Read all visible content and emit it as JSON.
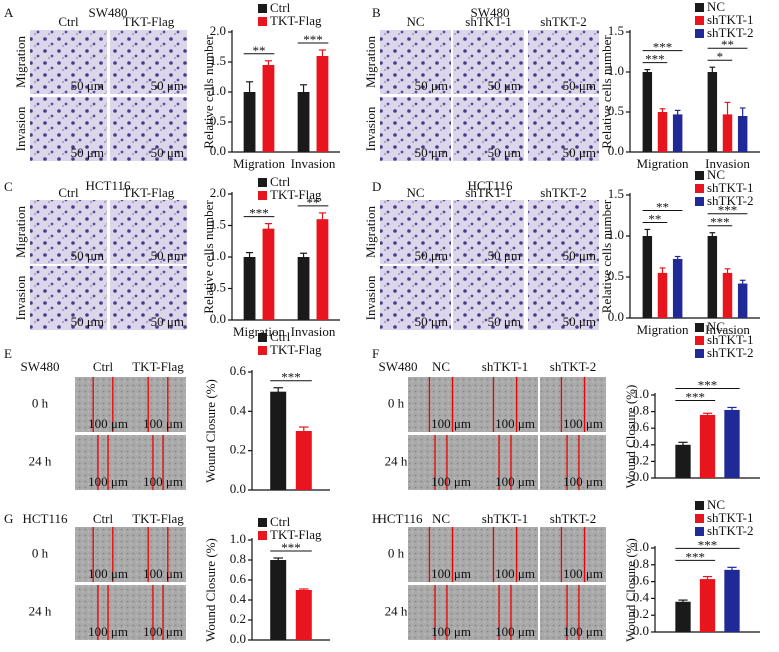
{
  "panels": [
    {
      "letter": "A",
      "cell_line": "SW480",
      "columns": [
        "Ctrl",
        "TKT-Flag"
      ],
      "rows": [
        "Migration",
        "Invasion"
      ],
      "scale": "50 μm"
    },
    {
      "letter": "B",
      "cell_line": "SW480",
      "columns": [
        "NC",
        "shTKT-1",
        "shTKT-2"
      ],
      "rows": [
        "Migration",
        "Invasion"
      ],
      "scale": "50 μm"
    },
    {
      "letter": "C",
      "cell_line": "HCT116",
      "columns": [
        "Ctrl",
        "TKT-Flag"
      ],
      "rows": [
        "Migration",
        "Invasion"
      ],
      "scale": "50 μm"
    },
    {
      "letter": "D",
      "cell_line": "HCT116",
      "columns": [
        "NC",
        "shTKT-1",
        "shTKT-2"
      ],
      "rows": [
        "Migration",
        "Invasion"
      ],
      "scale": "50 μm"
    },
    {
      "letter": "E",
      "cell_line": "SW480",
      "columns": [
        "Ctrl",
        "TKT-Flag"
      ],
      "rows": [
        "0 h",
        "24 h"
      ],
      "scale": "100 μm"
    },
    {
      "letter": "F",
      "cell_line": "SW480",
      "columns": [
        "NC",
        "shTKT-1",
        "shTKT-2"
      ],
      "rows": [
        "0 h",
        "24 h"
      ],
      "scale": "100 μm"
    },
    {
      "letter": "G",
      "cell_line": "HCT116",
      "columns": [
        "Ctrl",
        "TKT-Flag"
      ],
      "rows": [
        "0 h",
        "24 h"
      ],
      "scale": "100 μm"
    },
    {
      "letter": "H",
      "cell_line": "HCT116",
      "columns": [
        "NC",
        "shTKT-1",
        "shTKT-2"
      ],
      "rows": [
        "0 h",
        "24 h"
      ],
      "scale": "100 μm"
    }
  ],
  "chart_data": [
    {
      "type": "bar",
      "ylabel": "Relative cells number",
      "categories": [
        "Migration",
        "Invasion"
      ],
      "series": [
        {
          "name": "Ctrl",
          "color": "#1a1a1a",
          "values": [
            1.0,
            1.0
          ],
          "errors": [
            0.17,
            0.12
          ]
        },
        {
          "name": "TKT-Flag",
          "color": "#e8141e",
          "values": [
            1.45,
            1.6
          ],
          "errors": [
            0.07,
            0.1
          ]
        }
      ],
      "ylim": [
        0,
        2
      ],
      "yticks": [
        {
          "value": 0,
          "label": "0.0"
        },
        0.5,
        {
          "value": 1,
          "label": "1.0"
        },
        1.5,
        {
          "value": 2,
          "label": "2.0"
        }
      ],
      "annotations": [
        "**",
        "***"
      ]
    },
    {
      "type": "bar",
      "ylabel": "Relative cells number",
      "categories": [
        "Migration",
        "Invasion"
      ],
      "series": [
        {
          "name": "NC",
          "color": "#1a1a1a",
          "values": [
            1.0,
            1.0
          ],
          "errors": [
            0.03,
            0.06
          ]
        },
        {
          "name": "shTKT-1",
          "color": "#e8141e",
          "values": [
            0.5,
            0.47
          ],
          "errors": [
            0.04,
            0.15
          ]
        },
        {
          "name": "shTKT-2",
          "color": "#1f2a96",
          "values": [
            0.47,
            0.45
          ],
          "errors": [
            0.05,
            0.1
          ]
        }
      ],
      "ylim": [
        0,
        1.5
      ],
      "yticks": [
        {
          "value": 0,
          "label": "0.0"
        },
        0.5,
        {
          "value": 1,
          "label": "1.0"
        },
        1.5
      ],
      "annotations": [
        "***",
        "***",
        "*",
        "**"
      ]
    },
    {
      "type": "bar",
      "ylabel": "Relative cells number",
      "categories": [
        "Migration",
        "Invasion"
      ],
      "series": [
        {
          "name": "Ctrl",
          "color": "#1a1a1a",
          "values": [
            1.0,
            1.0
          ],
          "errors": [
            0.07,
            0.06
          ]
        },
        {
          "name": "TKT-Flag",
          "color": "#e8141e",
          "values": [
            1.45,
            1.6
          ],
          "errors": [
            0.08,
            0.1
          ]
        }
      ],
      "ylim": [
        0,
        2
      ],
      "yticks": [
        {
          "value": 0,
          "label": "0.0"
        },
        0.5,
        {
          "value": 1,
          "label": "1.0"
        },
        1.5,
        {
          "value": 2,
          "label": "2.0"
        }
      ],
      "annotations": [
        "***",
        "**"
      ]
    },
    {
      "type": "bar",
      "ylabel": "Relative cells number",
      "categories": [
        "Migration",
        "Invasion"
      ],
      "series": [
        {
          "name": "NC",
          "color": "#1a1a1a",
          "values": [
            1.0,
            1.0
          ],
          "errors": [
            0.08,
            0.04
          ]
        },
        {
          "name": "shTKT-1",
          "color": "#e8141e",
          "values": [
            0.55,
            0.55
          ],
          "errors": [
            0.06,
            0.05
          ]
        },
        {
          "name": "shTKT-2",
          "color": "#1f2a96",
          "values": [
            0.72,
            0.42
          ],
          "errors": [
            0.03,
            0.04
          ]
        }
      ],
      "ylim": [
        0,
        1.5
      ],
      "yticks": [
        {
          "value": 0,
          "label": "0.0"
        },
        0.5,
        {
          "value": 1,
          "label": "1.0"
        },
        1.5
      ],
      "annotations": [
        "**",
        "**",
        "***",
        "***"
      ]
    },
    {
      "type": "bar",
      "ylabel": "Wound Closure (%)",
      "categories": [
        null
      ],
      "series": [
        {
          "name": "Ctrl",
          "color": "#1a1a1a",
          "values": [
            0.5
          ],
          "errors": [
            0.02
          ]
        },
        {
          "name": "TKT-Flag",
          "color": "#e8141e",
          "values": [
            0.3
          ],
          "errors": [
            0.02
          ]
        }
      ],
      "ylim": [
        0,
        0.6
      ],
      "yticks": [
        {
          "value": 0,
          "label": "0.0"
        },
        0.2,
        0.4,
        0.6
      ],
      "annotations": [
        "***"
      ]
    },
    {
      "type": "bar",
      "ylabel": "Wound Closure (%)",
      "categories": [
        null
      ],
      "series": [
        {
          "name": "NC",
          "color": "#1a1a1a",
          "values": [
            0.4
          ],
          "errors": [
            0.03
          ]
        },
        {
          "name": "shTKT-1",
          "color": "#e8141e",
          "values": [
            0.76
          ],
          "errors": [
            0.02
          ]
        },
        {
          "name": "shTKT-2",
          "color": "#1f2a96",
          "values": [
            0.82
          ],
          "errors": [
            0.03
          ]
        }
      ],
      "ylim": [
        0,
        1
      ],
      "yticks": [
        {
          "value": 0,
          "label": "0.0"
        },
        0.2,
        0.4,
        0.6,
        0.8,
        {
          "value": 1,
          "label": "1.0"
        }
      ],
      "annotations": [
        "***",
        "***"
      ]
    },
    {
      "type": "bar",
      "ylabel": "Wound Closure (%)",
      "categories": [
        null
      ],
      "series": [
        {
          "name": "Ctrl",
          "color": "#1a1a1a",
          "values": [
            0.8
          ],
          "errors": [
            0.02
          ]
        },
        {
          "name": "TKT-Flag",
          "color": "#e8141e",
          "values": [
            0.5
          ],
          "errors": [
            0.01
          ]
        }
      ],
      "ylim": [
        0,
        1
      ],
      "yticks": [
        {
          "value": 0,
          "label": "0.0"
        },
        0.2,
        0.4,
        0.6,
        0.8,
        {
          "value": 1,
          "label": "1.0"
        }
      ],
      "annotations": [
        "***"
      ]
    },
    {
      "type": "bar",
      "ylabel": "Wound Closure (%)",
      "categories": [
        null
      ],
      "series": [
        {
          "name": "NC",
          "color": "#1a1a1a",
          "values": [
            0.36
          ],
          "errors": [
            0.02
          ]
        },
        {
          "name": "shTKT-1",
          "color": "#e8141e",
          "values": [
            0.63
          ],
          "errors": [
            0.03
          ]
        },
        {
          "name": "shTKT-2",
          "color": "#1f2a96",
          "values": [
            0.74
          ],
          "errors": [
            0.03
          ]
        }
      ],
      "ylim": [
        0,
        1
      ],
      "yticks": [
        {
          "value": 0,
          "label": "0.0"
        },
        0.2,
        0.4,
        0.6,
        0.8,
        {
          "value": 1,
          "label": "1.0"
        }
      ],
      "annotations": [
        "***",
        "***"
      ]
    }
  ]
}
